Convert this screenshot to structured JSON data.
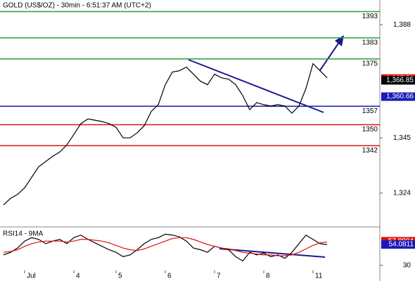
{
  "chart_data": [
    {
      "type": "line",
      "title": "GOLD (US$/OZ) - 30min - 6:51:37 AM (UTC+2)",
      "categories": [
        null,
        null,
        null,
        "Jul",
        null,
        null,
        null,
        null,
        null,
        null,
        "4",
        null,
        null,
        null,
        null,
        null,
        "5",
        null,
        null,
        null,
        null,
        null,
        null,
        "6",
        null,
        null,
        null,
        null,
        null,
        null,
        "7",
        null,
        null,
        null,
        null,
        null,
        null,
        "8",
        null,
        null,
        null,
        null,
        null,
        null,
        "11",
        null,
        null
      ],
      "series": [
        {
          "color": "#000000",
          "values": [
            1319.5,
            1322,
            1323.5,
            1326,
            1330,
            1334,
            1336,
            1338,
            1339.6,
            1342.3,
            1346.3,
            1350.4,
            1352.2,
            1351.7,
            1351.2,
            1350.4,
            1349,
            1345,
            1345,
            1346.9,
            1349.6,
            1355,
            1357.6,
            1365.2,
            1370,
            1370.5,
            1371.9,
            1369.2,
            1366.5,
            1365.2,
            1369.2,
            1367.8,
            1367.3,
            1365.2,
            1361.1,
            1355.7,
            1358.4,
            1357.6,
            1357.1,
            1357.6,
            1357.1,
            1354.4,
            1357.1,
            1363.8,
            1373.2,
            1370.5,
            1367.8
          ]
        }
      ],
      "ylim": [
        1311.4,
        1397.4
      ],
      "yticks": [
        {
          "value": 1388,
          "label": "1,388"
        },
        {
          "value": 1345,
          "label": "1,345"
        },
        {
          "value": 1324,
          "label": "1,324"
        }
      ],
      "levels": [
        {
          "value": 1393,
          "color": "#2a9d3a"
        },
        {
          "value": 1383,
          "color": "#2a9d3a"
        },
        {
          "value": 1375,
          "color": "#2a9d3a"
        },
        {
          "value": 1357,
          "color": "#1a1ab8"
        },
        {
          "value": 1350,
          "color": "#e01010"
        },
        {
          "value": 1342,
          "color": "#e01010"
        }
      ],
      "price_tags": [
        {
          "value": 1367.56,
          "label": "1,367.56",
          "color": "#e01010"
        },
        {
          "value": 1366.85,
          "label": "1,366.85",
          "color": "#000000"
        },
        {
          "value": 1360.66,
          "label": "1,360.66",
          "color": "#1a1ab8"
        }
      ]
    },
    {
      "type": "line",
      "title": "RSI14 - 9MA",
      "series": [
        {
          "color": "#000000",
          "values": [
            42,
            45,
            50,
            58,
            62,
            60,
            55,
            58,
            60,
            55,
            62,
            65,
            60,
            56,
            52,
            48,
            45,
            40,
            42,
            48,
            55,
            60,
            62,
            66,
            65,
            63,
            58,
            50,
            48,
            45,
            52,
            50,
            48,
            40,
            35,
            45,
            42,
            44,
            40,
            42,
            38,
            45,
            55,
            65,
            60,
            55,
            54
          ]
        },
        {
          "color": "#e01010",
          "values": [
            45,
            46,
            48,
            52,
            55,
            57,
            58,
            58,
            58,
            57,
            58,
            60,
            60,
            59,
            58,
            56,
            53,
            50,
            48,
            47,
            49,
            52,
            55,
            58,
            61,
            62,
            62,
            60,
            57,
            54,
            52,
            50,
            49,
            47,
            45,
            44,
            43,
            42,
            42,
            41,
            41,
            42,
            45,
            49,
            53,
            56,
            57
          ]
        }
      ],
      "ylim": [
        24,
        72
      ],
      "yticks": [
        30
      ],
      "price_tags": [
        {
          "value": 57.8804,
          "color": "#e01010"
        },
        {
          "value": 54.0811,
          "color": "#1a1ab8"
        }
      ]
    }
  ]
}
